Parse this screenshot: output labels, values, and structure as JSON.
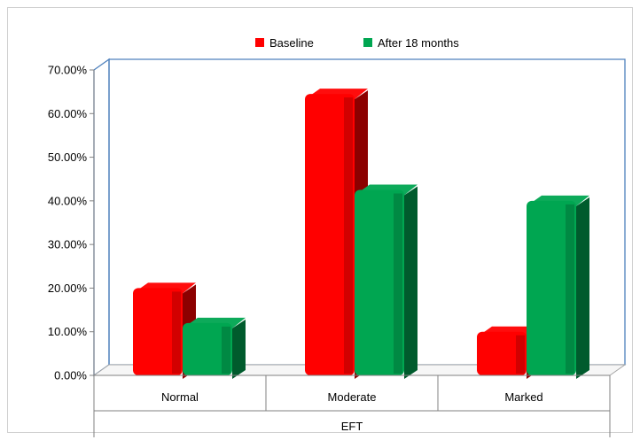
{
  "chart_data": {
    "type": "bar",
    "style": "3d clustered column",
    "categories": [
      "Normal",
      "Moderate",
      "Marked"
    ],
    "group_label": "EFT",
    "series": [
      {
        "name": "Baseline",
        "color": "#ff0000",
        "values": [
          0.2,
          0.645,
          0.1
        ]
      },
      {
        "name": "After 18 months",
        "color": "#00a651",
        "values": [
          0.12,
          0.425,
          0.4
        ]
      }
    ],
    "ylim": [
      0,
      0.7
    ],
    "yticks": [
      0,
      0.1,
      0.2,
      0.3,
      0.4,
      0.5,
      0.6,
      0.7
    ],
    "ytick_labels": [
      "0.00%",
      "10.00%",
      "20.00%",
      "30.00%",
      "40.00%",
      "50.00%",
      "60.00%",
      "70.00%"
    ],
    "grid": false,
    "legend_position": "top"
  }
}
